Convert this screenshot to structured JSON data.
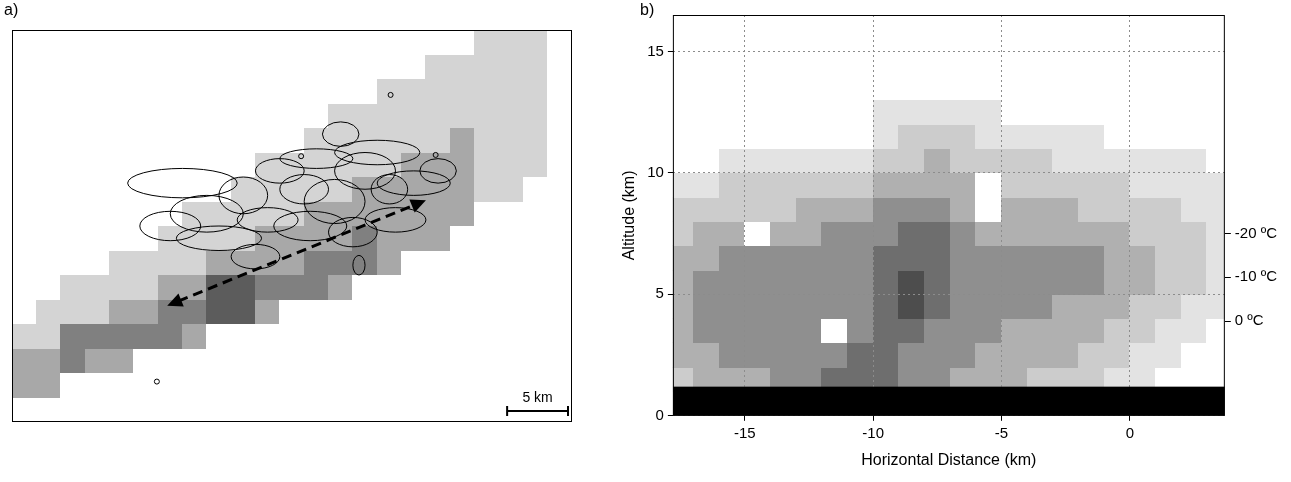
{
  "chart_data": [
    {
      "type": "heatmap",
      "title": "a)",
      "tick_labels": false,
      "grid": false,
      "xlim": [
        0,
        46
      ],
      "ylim": [
        0,
        32
      ],
      "cells": {
        "x": [
          1,
          3,
          5,
          7,
          9,
          11,
          13,
          15,
          17,
          19,
          21,
          23,
          25,
          27,
          29,
          31,
          33,
          35,
          37,
          39,
          41,
          43,
          45
        ],
        "y": [
          1,
          3,
          5,
          7,
          9,
          11,
          13,
          15,
          17,
          19,
          21,
          23,
          25,
          27,
          29,
          31
        ],
        "z": [
          [
            0,
            0,
            0,
            0,
            0,
            0,
            0,
            0,
            0,
            0,
            0,
            0,
            0,
            0,
            0,
            0,
            0,
            0,
            0,
            0,
            0,
            0,
            0
          ],
          [
            2,
            2,
            0,
            0,
            0,
            0,
            0,
            0,
            0,
            0,
            0,
            0,
            0,
            0,
            0,
            0,
            0,
            0,
            0,
            0,
            0,
            0,
            0
          ],
          [
            2,
            2,
            3,
            2,
            2,
            0,
            0,
            0,
            0,
            0,
            0,
            0,
            0,
            0,
            0,
            0,
            0,
            0,
            0,
            0,
            0,
            0,
            0
          ],
          [
            1,
            1,
            3,
            3,
            3,
            3,
            3,
            2,
            0,
            0,
            0,
            0,
            0,
            0,
            0,
            0,
            0,
            0,
            0,
            0,
            0,
            0,
            0
          ],
          [
            0,
            1,
            1,
            1,
            2,
            2,
            3,
            3,
            4,
            4,
            2,
            0,
            0,
            0,
            0,
            0,
            0,
            0,
            0,
            0,
            0,
            0,
            0
          ],
          [
            0,
            0,
            1,
            1,
            1,
            1,
            2,
            2,
            4,
            4,
            3,
            3,
            3,
            2,
            0,
            0,
            0,
            0,
            0,
            0,
            0,
            0,
            0
          ],
          [
            0,
            0,
            0,
            0,
            1,
            1,
            1,
            1,
            2,
            2,
            2,
            2,
            3,
            3,
            3,
            2,
            0,
            0,
            0,
            0,
            0,
            0,
            0
          ],
          [
            0,
            0,
            0,
            0,
            0,
            0,
            1,
            1,
            1,
            1,
            2,
            2,
            2,
            2,
            3,
            2,
            2,
            2,
            0,
            0,
            0,
            0,
            0
          ],
          [
            0,
            0,
            0,
            0,
            0,
            0,
            0,
            1,
            1,
            1,
            1,
            1,
            2,
            2,
            2,
            2,
            2,
            2,
            2,
            0,
            0,
            0,
            0
          ],
          [
            0,
            0,
            0,
            0,
            0,
            0,
            0,
            0,
            0,
            1,
            1,
            1,
            1,
            1,
            2,
            2,
            2,
            2,
            2,
            1,
            1,
            0,
            0
          ],
          [
            0,
            0,
            0,
            0,
            0,
            0,
            0,
            0,
            0,
            0,
            1,
            1,
            1,
            1,
            1,
            1,
            2,
            2,
            2,
            1,
            1,
            1,
            0
          ],
          [
            0,
            0,
            0,
            0,
            0,
            0,
            0,
            0,
            0,
            0,
            0,
            0,
            1,
            1,
            1,
            1,
            1,
            1,
            2,
            1,
            1,
            1,
            0
          ],
          [
            0,
            0,
            0,
            0,
            0,
            0,
            0,
            0,
            0,
            0,
            0,
            0,
            0,
            1,
            1,
            1,
            1,
            1,
            1,
            1,
            1,
            1,
            0
          ],
          [
            0,
            0,
            0,
            0,
            0,
            0,
            0,
            0,
            0,
            0,
            0,
            0,
            0,
            0,
            0,
            1,
            1,
            1,
            1,
            1,
            1,
            1,
            0
          ],
          [
            0,
            0,
            0,
            0,
            0,
            0,
            0,
            0,
            0,
            0,
            0,
            0,
            0,
            0,
            0,
            0,
            0,
            1,
            1,
            1,
            1,
            1,
            0
          ],
          [
            0,
            0,
            0,
            0,
            0,
            0,
            0,
            0,
            0,
            0,
            0,
            0,
            0,
            0,
            0,
            0,
            0,
            0,
            0,
            1,
            1,
            1,
            0
          ]
        ],
        "colors": [
          "#ffffff",
          "#d4d4d4",
          "#a8a8a8",
          "#808080",
          "#5c5c5c"
        ]
      },
      "ellipses": [
        {
          "x": 14,
          "y": 19.5,
          "rx": 4.5,
          "ry": 1.2
        },
        {
          "x": 16,
          "y": 17,
          "rx": 3,
          "ry": 1.5
        },
        {
          "x": 19,
          "y": 18.5,
          "rx": 2,
          "ry": 1.5
        },
        {
          "x": 21,
          "y": 16.5,
          "rx": 2.5,
          "ry": 1
        },
        {
          "x": 13,
          "y": 16,
          "rx": 2.5,
          "ry": 1.2
        },
        {
          "x": 17,
          "y": 15,
          "rx": 3.5,
          "ry": 1
        },
        {
          "x": 24,
          "y": 19,
          "rx": 2,
          "ry": 1.2
        },
        {
          "x": 25,
          "y": 21.5,
          "rx": 3,
          "ry": 0.8
        },
        {
          "x": 27,
          "y": 23.5,
          "rx": 1.5,
          "ry": 1
        },
        {
          "x": 26.5,
          "y": 18,
          "rx": 2.5,
          "ry": 1.8
        },
        {
          "x": 29,
          "y": 20.5,
          "rx": 2.5,
          "ry": 1.5
        },
        {
          "x": 31,
          "y": 19,
          "rx": 1.5,
          "ry": 1.2
        },
        {
          "x": 30,
          "y": 22,
          "rx": 3.5,
          "ry": 1
        },
        {
          "x": 33,
          "y": 19.5,
          "rx": 3,
          "ry": 1
        },
        {
          "x": 28,
          "y": 15.5,
          "rx": 2,
          "ry": 1.2
        },
        {
          "x": 22,
          "y": 20.5,
          "rx": 2,
          "ry": 1
        },
        {
          "x": 35,
          "y": 20.5,
          "rx": 1.5,
          "ry": 1
        },
        {
          "x": 20,
          "y": 13.5,
          "rx": 2,
          "ry": 1
        },
        {
          "x": 24.5,
          "y": 16,
          "rx": 3,
          "ry": 1.2
        },
        {
          "x": 31.5,
          "y": 16.5,
          "rx": 2.5,
          "ry": 1
        },
        {
          "x": 28.5,
          "y": 12.8,
          "rx": 0.5,
          "ry": 0.8
        }
      ],
      "points": {
        "x": [
          11.9,
          31.1,
          34.8,
          23.75
        ],
        "y": [
          3.3,
          26.7,
          21.8,
          21.7
        ],
        "marker": "circle",
        "color": "#000000"
      },
      "cross_section": {
        "x": [
          12.75,
          34
        ],
        "y": [
          9.5,
          18.1
        ],
        "line_style": "dashed",
        "color": "#000000"
      },
      "scale_bar": {
        "length": 5,
        "label": "5 km"
      }
    },
    {
      "type": "heatmap",
      "title": "b)",
      "grid": true,
      "xlabel": "Horizontal Distance (km)",
      "ylabel": "Altitude (km)",
      "xlim": [
        -17.8,
        3.7
      ],
      "xticks": [
        -15,
        -10,
        -5,
        0
      ],
      "ylim": [
        0,
        16.5
      ],
      "yticks": [
        0,
        5,
        10,
        15
      ],
      "y2lim": [
        0,
        16.5
      ],
      "y2ticks": [
        {
          "value": 7.5,
          "label": "-20 ºC"
        },
        {
          "value": 5.7,
          "label": "-10 ºC"
        },
        {
          "value": 3.9,
          "label": "0 ºC"
        }
      ],
      "cells": {
        "x": [
          -17.5,
          -16.5,
          -15.5,
          -14.5,
          -13.5,
          -12.5,
          -11.5,
          -10.5,
          -9.5,
          -8.5,
          -7.5,
          -6.5,
          -5.5,
          -4.5,
          -3.5,
          -2.5,
          -1.5,
          -0.5,
          0.5,
          1.5,
          2.5,
          3.5
        ],
        "y": [
          1.5,
          2.5,
          3.5,
          4.5,
          5.5,
          6.5,
          7.5,
          8.5,
          9.5,
          10.5,
          11.5,
          12.5
        ],
        "z": [
          [
            2,
            3,
            3,
            3,
            4,
            4,
            5,
            5,
            5,
            4,
            4,
            3,
            3,
            3,
            2,
            2,
            2,
            1,
            1,
            0,
            0,
            0
          ],
          [
            3,
            3,
            4,
            4,
            4,
            4,
            4,
            5,
            5,
            4,
            4,
            4,
            3,
            3,
            3,
            3,
            2,
            2,
            1,
            1,
            0,
            0
          ],
          [
            3,
            4,
            4,
            4,
            4,
            4,
            0,
            4,
            5,
            5,
            4,
            4,
            4,
            3,
            3,
            3,
            3,
            2,
            2,
            1,
            1,
            0
          ],
          [
            3,
            4,
            4,
            4,
            4,
            4,
            4,
            4,
            5,
            6,
            5,
            4,
            4,
            4,
            4,
            3,
            3,
            3,
            2,
            2,
            1,
            1
          ],
          [
            3,
            4,
            4,
            4,
            4,
            4,
            4,
            4,
            5,
            6,
            5,
            4,
            4,
            4,
            4,
            4,
            4,
            3,
            3,
            2,
            2,
            1
          ],
          [
            3,
            3,
            4,
            4,
            4,
            4,
            4,
            4,
            5,
            5,
            5,
            4,
            4,
            4,
            4,
            4,
            4,
            3,
            3,
            2,
            2,
            1
          ],
          [
            2,
            3,
            3,
            0,
            3,
            3,
            4,
            4,
            4,
            5,
            5,
            4,
            3,
            3,
            3,
            3,
            3,
            3,
            2,
            2,
            2,
            1
          ],
          [
            2,
            2,
            2,
            2,
            2,
            3,
            3,
            3,
            4,
            4,
            4,
            3,
            0,
            3,
            3,
            3,
            2,
            2,
            2,
            2,
            1,
            1
          ],
          [
            1,
            1,
            2,
            2,
            2,
            2,
            2,
            2,
            3,
            3,
            3,
            3,
            0,
            2,
            2,
            2,
            2,
            2,
            1,
            1,
            1,
            1
          ],
          [
            0,
            0,
            1,
            1,
            1,
            1,
            1,
            1,
            2,
            2,
            3,
            2,
            2,
            2,
            2,
            1,
            1,
            1,
            1,
            1,
            1,
            0
          ],
          [
            0,
            0,
            0,
            0,
            0,
            0,
            0,
            0,
            1,
            2,
            2,
            2,
            1,
            1,
            1,
            1,
            1,
            0,
            0,
            0,
            0,
            0
          ],
          [
            0,
            0,
            0,
            0,
            0,
            0,
            0,
            0,
            1,
            1,
            1,
            1,
            1,
            0,
            0,
            0,
            0,
            0,
            0,
            0,
            0,
            0
          ]
        ],
        "colors": [
          "#ffffff",
          "#e3e3e3",
          "#cccccc",
          "#b0b0b0",
          "#8f8f8f",
          "#6e6e6e",
          "#4d4d4d"
        ]
      },
      "ground": {
        "ylim": [
          0,
          1.2
        ],
        "color": "#000000"
      }
    }
  ]
}
